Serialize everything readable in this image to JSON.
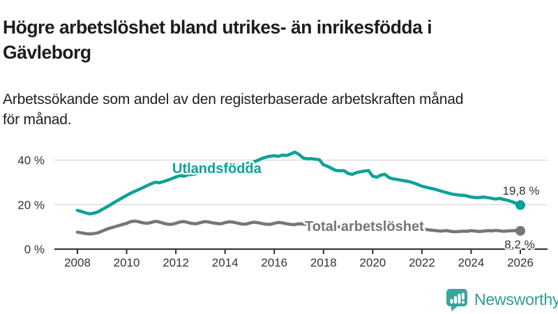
{
  "header": {
    "title": "Högre arbetslöshet bland utrikes- än inrikesfödda i\nGävleborg",
    "subtitle": "Arbetssökande som andel av den registerbaserade arbetskraften månad\nför månad."
  },
  "chart_data": {
    "type": "line",
    "title": "Högre arbetslöshet bland utrikes- än inrikesfödda i Gävleborg",
    "subtitle": "Arbetssökande som andel av den registerbaserade arbetskraften månad för månad.",
    "xlabel": "",
    "ylabel": "",
    "unit": "%",
    "xlim": [
      2008,
      2026
    ],
    "ylim": [
      0,
      46
    ],
    "grid": "horizontal",
    "legend_position": "inline-labels",
    "yticks": [
      {
        "v": 0,
        "label": "0 %"
      },
      {
        "v": 20,
        "label": "20 %"
      },
      {
        "v": 40,
        "label": "40 %"
      }
    ],
    "xticks": [
      {
        "v": 2008,
        "label": "2008"
      },
      {
        "v": 2010,
        "label": "2010"
      },
      {
        "v": 2012,
        "label": "2012"
      },
      {
        "v": 2014,
        "label": "2014"
      },
      {
        "v": 2016,
        "label": "2016"
      },
      {
        "v": 2018,
        "label": "2018"
      },
      {
        "v": 2020,
        "label": "2020"
      },
      {
        "v": 2022,
        "label": "2022"
      },
      {
        "v": 2024,
        "label": "2024"
      },
      {
        "v": 2026,
        "label": "2026"
      }
    ],
    "series": [
      {
        "name": "Utlandsfödda",
        "color": "#0aa298",
        "end_label": "19,8 %",
        "end_value": 19.8,
        "points": [
          [
            2008.0,
            17.4
          ],
          [
            2008.17,
            16.9
          ],
          [
            2008.33,
            16.3
          ],
          [
            2008.5,
            15.8
          ],
          [
            2008.67,
            16.2
          ],
          [
            2008.83,
            16.7
          ],
          [
            2009.0,
            17.8
          ],
          [
            2009.25,
            19.3
          ],
          [
            2009.5,
            21.0
          ],
          [
            2009.75,
            22.6
          ],
          [
            2010.0,
            24.2
          ],
          [
            2010.25,
            25.6
          ],
          [
            2010.5,
            26.8
          ],
          [
            2010.75,
            28.1
          ],
          [
            2011.0,
            29.4
          ],
          [
            2011.17,
            30.1
          ],
          [
            2011.33,
            29.8
          ],
          [
            2011.5,
            30.4
          ],
          [
            2011.75,
            31.3
          ],
          [
            2012.0,
            32.4
          ],
          [
            2012.17,
            33.1
          ],
          [
            2012.33,
            32.8
          ],
          [
            2012.5,
            33.4
          ],
          [
            2012.75,
            33.7
          ],
          [
            2013.0,
            34.3
          ],
          [
            2013.25,
            34.8
          ],
          [
            2013.5,
            35.2
          ],
          [
            2013.75,
            35.8
          ],
          [
            2014.0,
            36.5
          ],
          [
            2014.25,
            37.0
          ],
          [
            2014.5,
            37.4
          ],
          [
            2014.75,
            38.0
          ],
          [
            2015.0,
            38.7
          ],
          [
            2015.25,
            39.5
          ],
          [
            2015.5,
            40.8
          ],
          [
            2015.75,
            41.6
          ],
          [
            2016.0,
            42.0
          ],
          [
            2016.17,
            41.7
          ],
          [
            2016.33,
            42.3
          ],
          [
            2016.5,
            42.1
          ],
          [
            2016.67,
            42.8
          ],
          [
            2016.83,
            43.6
          ],
          [
            2017.0,
            42.6
          ],
          [
            2017.17,
            41.0
          ],
          [
            2017.33,
            40.6
          ],
          [
            2017.5,
            40.7
          ],
          [
            2017.67,
            40.4
          ],
          [
            2017.83,
            40.2
          ],
          [
            2018.0,
            37.9
          ],
          [
            2018.17,
            37.2
          ],
          [
            2018.33,
            36.3
          ],
          [
            2018.5,
            35.4
          ],
          [
            2018.67,
            35.2
          ],
          [
            2018.83,
            35.3
          ],
          [
            2019.0,
            34.0
          ],
          [
            2019.17,
            33.6
          ],
          [
            2019.33,
            34.4
          ],
          [
            2019.5,
            34.8
          ],
          [
            2019.67,
            35.1
          ],
          [
            2019.83,
            35.3
          ],
          [
            2020.0,
            32.8
          ],
          [
            2020.17,
            32.3
          ],
          [
            2020.33,
            33.3
          ],
          [
            2020.5,
            33.6
          ],
          [
            2020.67,
            32.1
          ],
          [
            2020.83,
            31.6
          ],
          [
            2021.0,
            31.3
          ],
          [
            2021.25,
            30.8
          ],
          [
            2021.5,
            30.3
          ],
          [
            2021.75,
            29.4
          ],
          [
            2022.0,
            28.3
          ],
          [
            2022.25,
            27.6
          ],
          [
            2022.5,
            27.0
          ],
          [
            2022.75,
            26.2
          ],
          [
            2023.0,
            25.4
          ],
          [
            2023.25,
            24.7
          ],
          [
            2023.5,
            24.3
          ],
          [
            2023.75,
            24.1
          ],
          [
            2024.0,
            23.4
          ],
          [
            2024.25,
            23.1
          ],
          [
            2024.5,
            23.4
          ],
          [
            2024.75,
            23.0
          ],
          [
            2025.0,
            22.5
          ],
          [
            2025.17,
            22.8
          ],
          [
            2025.33,
            22.3
          ],
          [
            2025.5,
            21.9
          ],
          [
            2025.75,
            21.0
          ],
          [
            2026.0,
            19.8
          ]
        ]
      },
      {
        "name": "Total arbetslöshet",
        "color": "#76767a",
        "end_label": "8,2 %",
        "end_value": 8.2,
        "points": [
          [
            2008.0,
            7.6
          ],
          [
            2008.17,
            7.3
          ],
          [
            2008.33,
            7.0
          ],
          [
            2008.5,
            6.8
          ],
          [
            2008.67,
            7.0
          ],
          [
            2008.83,
            7.3
          ],
          [
            2009.0,
            8.1
          ],
          [
            2009.25,
            9.2
          ],
          [
            2009.5,
            10.0
          ],
          [
            2009.75,
            10.8
          ],
          [
            2010.0,
            11.6
          ],
          [
            2010.17,
            12.4
          ],
          [
            2010.33,
            12.6
          ],
          [
            2010.5,
            12.3
          ],
          [
            2010.67,
            11.8
          ],
          [
            2010.83,
            11.6
          ],
          [
            2011.0,
            12.0
          ],
          [
            2011.17,
            12.5
          ],
          [
            2011.33,
            12.2
          ],
          [
            2011.5,
            11.6
          ],
          [
            2011.67,
            11.2
          ],
          [
            2011.83,
            11.1
          ],
          [
            2012.0,
            11.6
          ],
          [
            2012.17,
            12.2
          ],
          [
            2012.33,
            12.4
          ],
          [
            2012.5,
            11.9
          ],
          [
            2012.67,
            11.5
          ],
          [
            2012.83,
            11.4
          ],
          [
            2013.0,
            11.9
          ],
          [
            2013.17,
            12.4
          ],
          [
            2013.33,
            12.2
          ],
          [
            2013.5,
            11.8
          ],
          [
            2013.67,
            11.5
          ],
          [
            2013.83,
            11.4
          ],
          [
            2014.0,
            11.9
          ],
          [
            2014.17,
            12.3
          ],
          [
            2014.33,
            12.1
          ],
          [
            2014.5,
            11.7
          ],
          [
            2014.67,
            11.3
          ],
          [
            2014.83,
            11.2
          ],
          [
            2015.0,
            11.7
          ],
          [
            2015.17,
            12.1
          ],
          [
            2015.33,
            11.9
          ],
          [
            2015.5,
            11.5
          ],
          [
            2015.67,
            11.2
          ],
          [
            2015.83,
            11.1
          ],
          [
            2016.0,
            11.6
          ],
          [
            2016.17,
            12.0
          ],
          [
            2016.33,
            11.8
          ],
          [
            2016.5,
            11.4
          ],
          [
            2016.67,
            11.1
          ],
          [
            2016.83,
            11.0
          ],
          [
            2017.0,
            11.4
          ],
          [
            2017.25,
            11.2
          ],
          [
            2017.5,
            10.9
          ],
          [
            2017.75,
            10.6
          ],
          [
            2018.0,
            10.7
          ],
          [
            2018.25,
            10.4
          ],
          [
            2018.5,
            10.1
          ],
          [
            2018.75,
            9.9
          ],
          [
            2019.0,
            10.0
          ],
          [
            2019.25,
            9.8
          ],
          [
            2019.5,
            9.6
          ],
          [
            2019.75,
            9.7
          ],
          [
            2020.0,
            10.0
          ],
          [
            2020.25,
            10.6
          ],
          [
            2020.5,
            10.8
          ],
          [
            2020.75,
            10.5
          ],
          [
            2021.0,
            10.4
          ],
          [
            2021.25,
            10.1
          ],
          [
            2021.5,
            9.7
          ],
          [
            2021.75,
            9.3
          ],
          [
            2022.0,
            9.0
          ],
          [
            2022.25,
            8.7
          ],
          [
            2022.5,
            8.4
          ],
          [
            2022.75,
            8.1
          ],
          [
            2023.0,
            8.3
          ],
          [
            2023.17,
            8.0
          ],
          [
            2023.33,
            7.8
          ],
          [
            2023.5,
            7.9
          ],
          [
            2023.67,
            8.1
          ],
          [
            2023.83,
            8.0
          ],
          [
            2024.0,
            8.3
          ],
          [
            2024.17,
            8.1
          ],
          [
            2024.33,
            7.9
          ],
          [
            2024.5,
            8.1
          ],
          [
            2024.67,
            8.3
          ],
          [
            2024.83,
            8.2
          ],
          [
            2025.0,
            8.4
          ],
          [
            2025.17,
            8.2
          ],
          [
            2025.33,
            8.0
          ],
          [
            2025.5,
            8.2
          ],
          [
            2025.75,
            8.3
          ],
          [
            2026.0,
            8.2
          ]
        ]
      }
    ]
  },
  "colors": {
    "axis": "#2e2e2e",
    "grid": "#dcdcdc",
    "tick_text": "#333333",
    "title_text": "#1d1d1b"
  },
  "footer": {
    "brand": "Newsworthy",
    "brand_color": "#2f9c96",
    "logo_icon": "speech-bubble-bar-chart-icon",
    "logo_bubble_color": "#3aa39c"
  }
}
